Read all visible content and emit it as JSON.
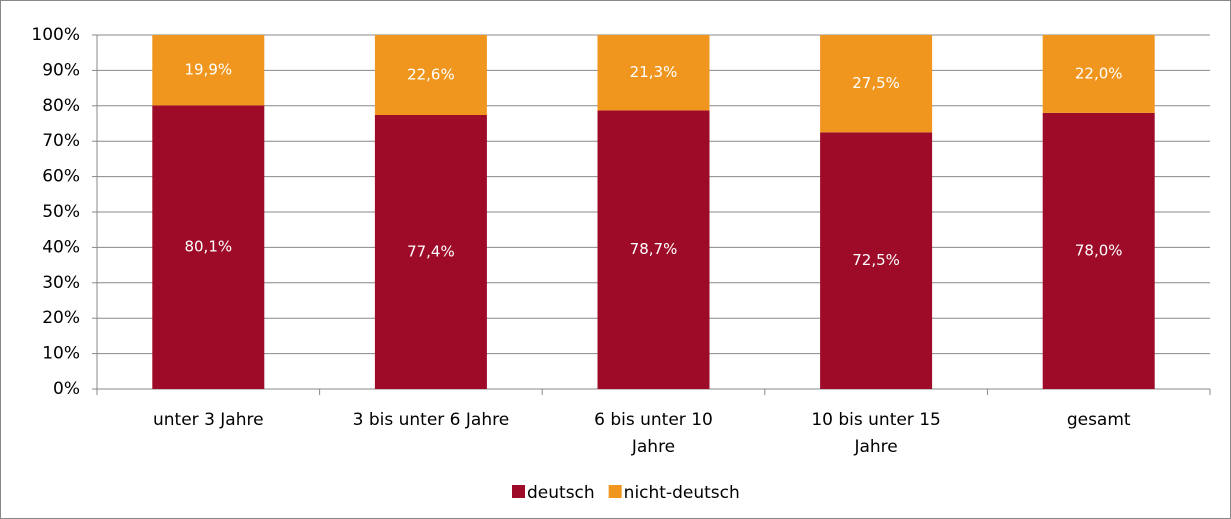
{
  "chart_data": {
    "type": "stacked_bar",
    "categories": [
      "unter 3 Jahre",
      "3 bis unter 6 Jahre",
      "6 bis unter 10\nJahre",
      "10 bis unter 15\nJahre",
      "gesamt"
    ],
    "series": [
      {
        "name": "deutsch",
        "color": "#9e0b28",
        "values": [
          80.1,
          77.4,
          78.7,
          72.5,
          78.0
        ],
        "value_labels": [
          "80,1%",
          "77,4%",
          "78,7%",
          "72,5%",
          "78,0%"
        ]
      },
      {
        "name": "nicht-deutsch",
        "color": "#f0961e",
        "values": [
          19.9,
          22.6,
          21.3,
          27.5,
          22.0
        ],
        "value_labels": [
          "19,9%",
          "22,6%",
          "21,3%",
          "27,5%",
          "22,0%"
        ]
      }
    ],
    "ylim": [
      0,
      100
    ],
    "yticks": [
      {
        "value": 0,
        "label": "0%"
      },
      {
        "value": 10,
        "label": "10%"
      },
      {
        "value": 20,
        "label": "20%"
      },
      {
        "value": 30,
        "label": "30%"
      },
      {
        "value": 40,
        "label": "40%"
      },
      {
        "value": 50,
        "label": "50%"
      },
      {
        "value": 60,
        "label": "60%"
      },
      {
        "value": 70,
        "label": "70%"
      },
      {
        "value": 80,
        "label": "80%"
      },
      {
        "value": 90,
        "label": "90%"
      },
      {
        "value": 100,
        "label": "100%"
      }
    ],
    "legend": "bottom"
  }
}
